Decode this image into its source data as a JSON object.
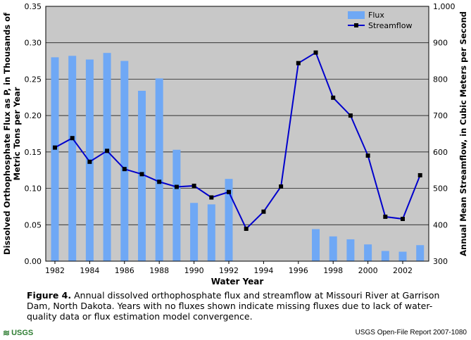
{
  "chart_data": {
    "type": "bar+line",
    "xlabel": "Water Year",
    "ylabel_left": "Dissolved Orthophosphate Flux as P, in Thousands of Metric Tons per Year",
    "ylabel_right": "Annual Mean Streamflow, in Cubic Meters per Second",
    "ylim_left": [
      0,
      0.35
    ],
    "ylim_right": [
      300,
      1000
    ],
    "yticks_left": [
      "0.00",
      "0.05",
      "0.10",
      "0.15",
      "0.20",
      "0.25",
      "0.30",
      "0.35"
    ],
    "yticks_right": [
      "300",
      "400",
      "500",
      "600",
      "700",
      "800",
      "900",
      "1,000"
    ],
    "xticks": [
      "1982",
      "1984",
      "1986",
      "1988",
      "1990",
      "1992",
      "1994",
      "1996",
      "1998",
      "2000",
      "2002"
    ],
    "grid": true,
    "legend_position": "top-right",
    "years": [
      1982,
      1983,
      1984,
      1985,
      1986,
      1987,
      1988,
      1989,
      1990,
      1991,
      1992,
      1993,
      1994,
      1995,
      1996,
      1997,
      1998,
      1999,
      2000,
      2001,
      2002,
      2003
    ],
    "series": [
      {
        "name": "Flux",
        "type": "bar",
        "axis": "left",
        "color": "#6fa8f5",
        "values": [
          0.28,
          0.282,
          0.277,
          0.286,
          0.275,
          0.234,
          0.251,
          0.153,
          0.08,
          0.078,
          0.113,
          null,
          null,
          null,
          null,
          0.044,
          0.034,
          0.03,
          0.023,
          0.014,
          0.013,
          0.022
        ]
      },
      {
        "name": "Streamflow",
        "type": "line",
        "axis": "right",
        "color": "#0000cc",
        "values": [
          612,
          638,
          573,
          603,
          553,
          539,
          518,
          504,
          507,
          475,
          490,
          389,
          436,
          505,
          844,
          873,
          749,
          700,
          590,
          422,
          416,
          536
        ]
      }
    ]
  },
  "caption": {
    "label": "Figure 4.",
    "text": "Annual dissolved orthophosphate flux and streamflow at Missouri River at Garrison Dam, North Dakota. Years with no fluxes shown indicate missing fluxes due to lack of water-quality data or flux estimation model convergence."
  },
  "footer": {
    "logo": "USGS",
    "report": "USGS Open-File Report 2007-1080"
  },
  "colors": {
    "plot_background": "#c8c8c8",
    "bar": "#6fa8f5",
    "line": "#0000cc",
    "marker": "#000000"
  }
}
